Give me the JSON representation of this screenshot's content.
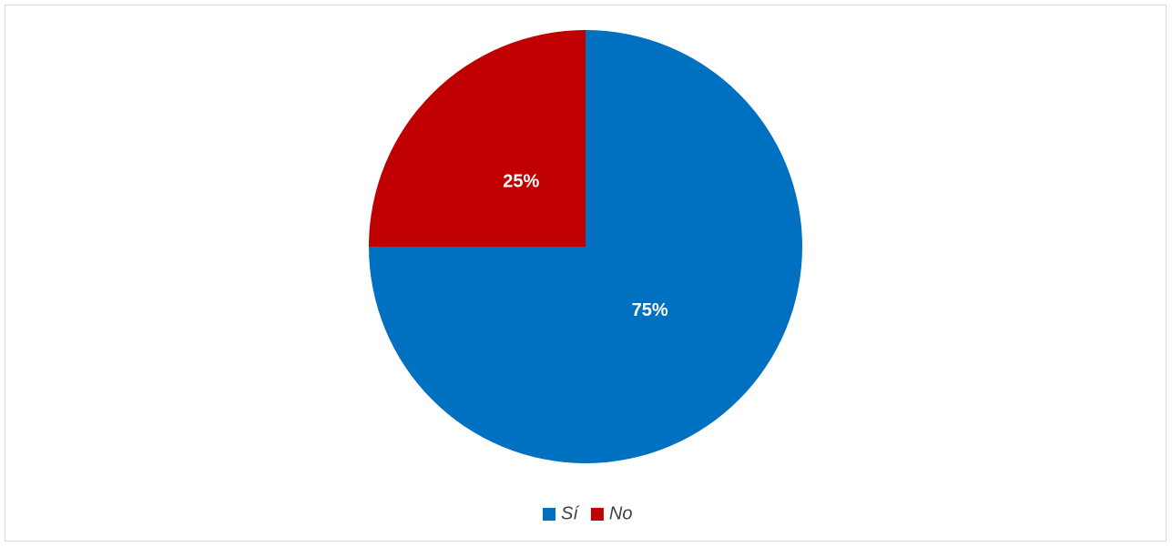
{
  "chart_data": {
    "type": "pie",
    "categories": [
      "Sí",
      "No"
    ],
    "values": [
      75,
      25
    ],
    "value_labels": [
      "75%",
      "25%"
    ],
    "colors": [
      "#0070c0",
      "#c00000"
    ],
    "legend": "bottom"
  }
}
